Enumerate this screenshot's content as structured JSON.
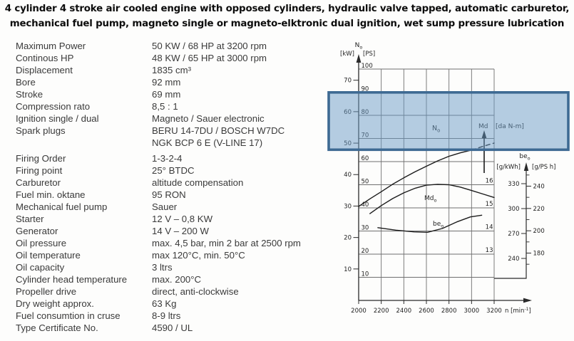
{
  "header": {
    "line1": "4 cylinder 4 stroke air cooled engine with opposed cylinders, hydraulic valve tapped, automatic carburetor,",
    "line2": "mechanical fuel pump, magneto single or magneto-elktronic dual ignition, wet sump pressure lubrication"
  },
  "specs": {
    "rows": [
      {
        "label": "Maximum Power",
        "value": "50 KW / 68 HP at 3200 rpm"
      },
      {
        "label": "Continous HP",
        "value": "48 KW / 65 HP at 3000 rpm"
      },
      {
        "label": "Displacement",
        "value": "1835 cm³"
      },
      {
        "label": "Bore",
        "value": "92 mm"
      },
      {
        "label": "Stroke",
        "value": "69 mm"
      },
      {
        "label": "Compression rato",
        "value": "8,5 : 1"
      },
      {
        "label": "Ignition single / dual",
        "value": "Magneto / Sauer electronic"
      },
      {
        "label": "Spark plugs",
        "value": "BERU 14-7DU / BOSCH W7DC"
      },
      {
        "label": "",
        "value": "NGK BCP 6 E (V-LINE 17)"
      },
      {
        "label": "Firing Order",
        "value": "1-3-2-4",
        "gap_before": true
      },
      {
        "label": "Firing point",
        "value": "25° BTDC"
      },
      {
        "label": "Carburetor",
        "value": "altitude compensation"
      },
      {
        "label": "Fuel min. oktane",
        "value": "95 RON"
      },
      {
        "label": "Mechanical fuel pump",
        "value": "Sauer"
      },
      {
        "label": "Starter",
        "value": "12 V – 0,8 KW"
      },
      {
        "label": "Generator",
        "value": "14 V – 200 W"
      },
      {
        "label": "Oil pressure",
        "value": "max. 4,5 bar, min 2 bar at 2500 rpm"
      },
      {
        "label": "Oil temperature",
        "value": "max 120°C, min. 50°C"
      },
      {
        "label": "Oil capacity",
        "value": "3 ltrs"
      },
      {
        "label": "Cylinder head temperature",
        "value": "max. 200°C"
      },
      {
        "label": "Propeller drive",
        "value": "direct, anti-clockwise"
      },
      {
        "label": "Dry weight approx.",
        "value": "63 Kg"
      },
      {
        "label": "Fuel consumtion in cruse",
        "value": "8-9 ltrs"
      },
      {
        "label": "Type Certificate No.",
        "value": "4590 / UL"
      }
    ]
  },
  "chart": {
    "power_axis": {
      "title_main": "N",
      "title_sub": "o",
      "unit_kW": "[kW]",
      "unit_PS": "[PS]"
    },
    "torque_label": {
      "main": "Md",
      "unit": "[da N-m]"
    },
    "bsfc_axis": {
      "title_main": "be",
      "title_sub": "o",
      "unit_kWh": "[g/kWh]",
      "unit_PSh": "[g/PS h]"
    },
    "x_label": {
      "pre": "n [min",
      "sup": "-1",
      "post": "]"
    },
    "curve_labels": {
      "power": {
        "main": "N",
        "sub": "o"
      },
      "torque": {
        "main": "Md",
        "sub": "o"
      },
      "bsfc": {
        "main": "be",
        "sub": "o"
      }
    }
  },
  "chart_data": {
    "type": "line",
    "title": "",
    "xlabel": "n [min⁻¹]",
    "x_axis": {
      "ticks": [
        2000,
        2200,
        2400,
        2600,
        2800,
        3000,
        3200
      ],
      "range": [
        2000,
        3200
      ]
    },
    "y_axes": {
      "power": {
        "title": "N₀",
        "units": [
          "kW",
          "PS"
        ],
        "kW_ticks": [
          10,
          20,
          30,
          40,
          50,
          60,
          70
        ],
        "PS_ticks": [
          10,
          20,
          30,
          40,
          50,
          60,
          70,
          80,
          90,
          100
        ],
        "PS_range": [
          0,
          100
        ]
      },
      "torque": {
        "title": "Md [da N-m]",
        "ticks": [
          13,
          14,
          15,
          16
        ]
      },
      "bsfc": {
        "title": "be₀",
        "g_kWh_ticks": [
          240,
          270,
          300,
          330
        ],
        "g_PSh_ticks": [
          180,
          200,
          220,
          240
        ]
      }
    },
    "grid": true,
    "series": [
      {
        "name": "N₀",
        "quantity": "power",
        "unit": "PS",
        "style": "solid",
        "points": [
          [
            2000,
            40.6
          ],
          [
            2100,
            43.9
          ],
          [
            2200,
            47
          ],
          [
            2300,
            50.2
          ],
          [
            2400,
            53
          ],
          [
            2500,
            55.6
          ],
          [
            2600,
            58
          ],
          [
            2700,
            60.3
          ],
          [
            2800,
            62.3
          ],
          [
            2900,
            63.8
          ],
          [
            3000,
            65
          ]
        ]
      },
      {
        "name": "N₀ (dashed extension)",
        "quantity": "power",
        "unit": "PS",
        "style": "dashed",
        "points": [
          [
            3000,
            65
          ],
          [
            3100,
            66.6
          ],
          [
            3200,
            68
          ]
        ]
      },
      {
        "name": "Md₀",
        "quantity": "torque",
        "unit": "da N-m",
        "style": "solid",
        "points": [
          [
            2100,
            14.75
          ],
          [
            2200,
            15.1
          ],
          [
            2300,
            15.4
          ],
          [
            2400,
            15.65
          ],
          [
            2500,
            15.85
          ],
          [
            2600,
            15.98
          ],
          [
            2700,
            16.02
          ],
          [
            2800,
            16.0
          ],
          [
            2900,
            15.9
          ],
          [
            3000,
            15.75
          ],
          [
            3100,
            15.6
          ],
          [
            3200,
            15.45
          ]
        ]
      },
      {
        "name": "be₀",
        "quantity": "bsfc",
        "unit": "g/kWh",
        "style": "solid",
        "points": [
          [
            2170,
            277
          ],
          [
            2330,
            274
          ],
          [
            2490,
            272
          ],
          [
            2610,
            271.5
          ],
          [
            2740,
            276
          ],
          [
            2870,
            284
          ],
          [
            2990,
            290
          ],
          [
            3090,
            292
          ]
        ]
      }
    ]
  },
  "colors": {
    "background": "#fdfdfc",
    "text": "#3a3a3a",
    "grid": "#6f6f6f",
    "axis": "#2a2a2a",
    "curve": "#1b1b1b",
    "band_fill": "#6b9cc6",
    "band_border": "#3e6a93"
  }
}
